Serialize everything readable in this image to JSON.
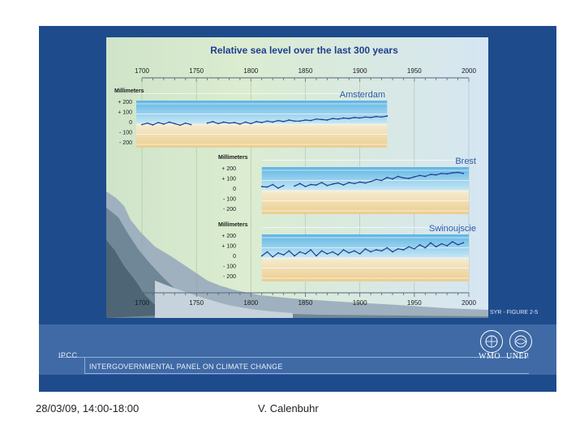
{
  "figure": {
    "caption": "SYR - FIGURE 2-5"
  },
  "footer": {
    "organization_short": "IPCC",
    "organization_full": "INTERGOVERNMENTAL PANEL ON CLIMATE CHANGE",
    "logo_left_label": "WMO",
    "logo_right_label": "UNEP",
    "date": "28/03/09, 14:00-18:00",
    "author": "V. Calenbuhr"
  },
  "colors": {
    "slide_background": "#1e4b8c",
    "footer_band": "#3f6aa5",
    "series_line": "#1d3f8f",
    "positive_band": "#7fc4e8",
    "negative_band": "#f0d9a5"
  },
  "chart_data": {
    "type": "line",
    "title": "Relative sea level over the last 300 years",
    "x_ticks": [
      "1700",
      "1750",
      "1800",
      "1850",
      "1900",
      "1950",
      "2000"
    ],
    "y_tick_labels": [
      "+ 200",
      "+ 100",
      "0",
      "- 100",
      "- 200"
    ],
    "ylabel": "Millimeters",
    "ylim": [
      -200,
      200
    ],
    "series": [
      {
        "name": "Amsterdam",
        "x": [
          1700,
          1705,
          1710,
          1715,
          1720,
          1725,
          1730,
          1735,
          1740,
          1745,
          1750,
          1755,
          1760,
          1765,
          1770,
          1775,
          1780,
          1785,
          1790,
          1795,
          1800,
          1805,
          1810,
          1815,
          1820,
          1825,
          1830,
          1835,
          1840,
          1845,
          1850,
          1855,
          1860,
          1865,
          1870,
          1875,
          1880,
          1885,
          1890,
          1895,
          1900,
          1905,
          1910,
          1915,
          1920,
          1925
        ],
        "y": [
          -5,
          10,
          -8,
          15,
          0,
          20,
          5,
          -10,
          10,
          -5,
          null,
          null,
          10,
          25,
          5,
          20,
          10,
          15,
          0,
          20,
          5,
          25,
          15,
          30,
          20,
          35,
          25,
          40,
          30,
          30,
          40,
          35,
          50,
          45,
          40,
          55,
          50,
          60,
          55,
          65,
          60,
          70,
          65,
          75,
          70,
          80
        ]
      },
      {
        "name": "Brest",
        "x": [
          1810,
          1815,
          1820,
          1825,
          1830,
          1835,
          1840,
          1845,
          1850,
          1855,
          1860,
          1865,
          1870,
          1875,
          1880,
          1885,
          1890,
          1895,
          1900,
          1905,
          1910,
          1915,
          1920,
          1925,
          1930,
          1935,
          1940,
          1945,
          1950,
          1955,
          1960,
          1965,
          1970,
          1975,
          1980,
          1985,
          1990,
          1995
        ],
        "y": [
          40,
          35,
          60,
          25,
          50,
          null,
          45,
          70,
          40,
          60,
          55,
          80,
          50,
          65,
          75,
          55,
          80,
          70,
          85,
          75,
          90,
          110,
          100,
          130,
          115,
          140,
          125,
          120,
          135,
          150,
          140,
          160,
          155,
          170,
          165,
          175,
          180,
          170
        ]
      },
      {
        "name": "Swinoujscie",
        "x": [
          1810,
          1815,
          1820,
          1825,
          1830,
          1835,
          1840,
          1845,
          1850,
          1855,
          1860,
          1865,
          1870,
          1875,
          1880,
          1885,
          1890,
          1895,
          1900,
          1905,
          1910,
          1915,
          1920,
          1925,
          1930,
          1935,
          1940,
          1945,
          1950,
          1955,
          1960,
          1965,
          1970,
          1975,
          1980,
          1985,
          1990,
          1995
        ],
        "y": [
          20,
          60,
          10,
          50,
          30,
          70,
          20,
          60,
          40,
          80,
          20,
          70,
          40,
          60,
          30,
          80,
          50,
          70,
          40,
          90,
          60,
          80,
          70,
          100,
          60,
          90,
          80,
          110,
          90,
          130,
          100,
          150,
          110,
          140,
          120,
          160,
          130,
          150
        ]
      }
    ]
  }
}
